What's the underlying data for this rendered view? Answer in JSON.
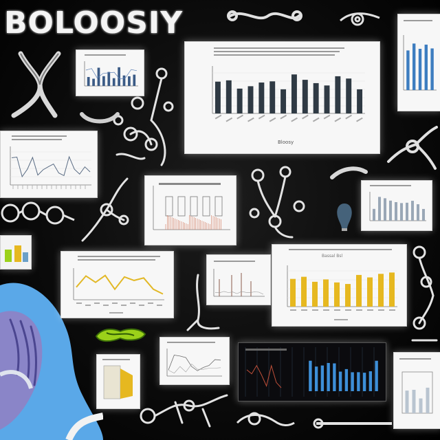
{
  "poster": {
    "title": "BOLOOSIY",
    "main_chart_footer": "Bloosy",
    "yellow_chart_subtitle": "Bassal Bsl",
    "colors": {
      "background": "#050505",
      "panel": "#f7f7f7",
      "bars_dark": "#2f3a44",
      "bars_yellow": "#e6b820",
      "line_yellow": "#e2b826",
      "bars_blue": "#3d8fd8",
      "glove": "#8a85c8",
      "lab_blue": "#5aa8e8",
      "slug_green": "#9bd11a"
    },
    "icons": [
      "molecule-doodle-icon",
      "gloved-hand-icon",
      "green-slug-icon",
      "bulb-icon"
    ]
  }
}
